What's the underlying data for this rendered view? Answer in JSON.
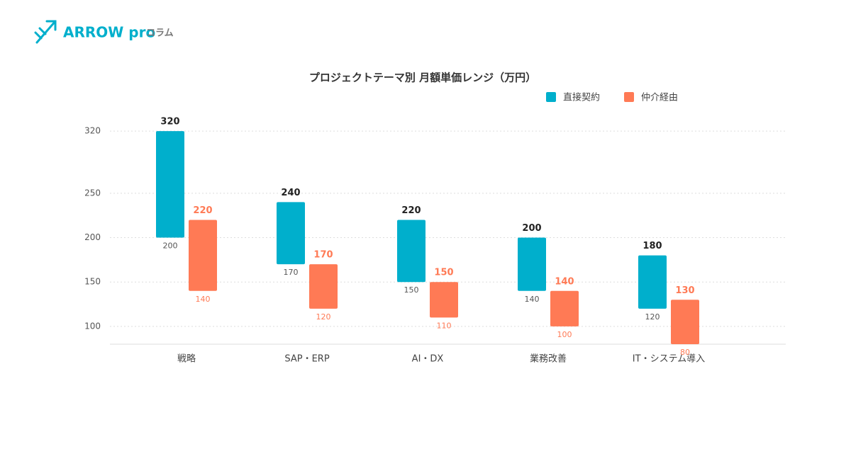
{
  "header": {
    "brand": "ARROW pro",
    "section": "コラム"
  },
  "chart_data": {
    "type": "range_bar",
    "title": "プロジェクトテーマ別 月額単価レンジ（万円）",
    "categories": [
      "戦略",
      "SAP・ERP",
      "AI・DX",
      "業務改善",
      "IT・システム導入"
    ],
    "series": [
      {
        "name": "直接契約",
        "color": "#00afcc",
        "low": [
          200,
          170,
          150,
          140,
          120
        ],
        "high": [
          320,
          240,
          220,
          200,
          180
        ]
      },
      {
        "name": "仲介経由",
        "color": "#ff7a55",
        "low": [
          140,
          120,
          110,
          100,
          80
        ],
        "high": [
          220,
          170,
          150,
          140,
          130
        ]
      }
    ],
    "ylim": [
      80,
      340
    ],
    "yticks": [
      100,
      150,
      200,
      250,
      320
    ],
    "grid": true,
    "legend": "top-right"
  }
}
